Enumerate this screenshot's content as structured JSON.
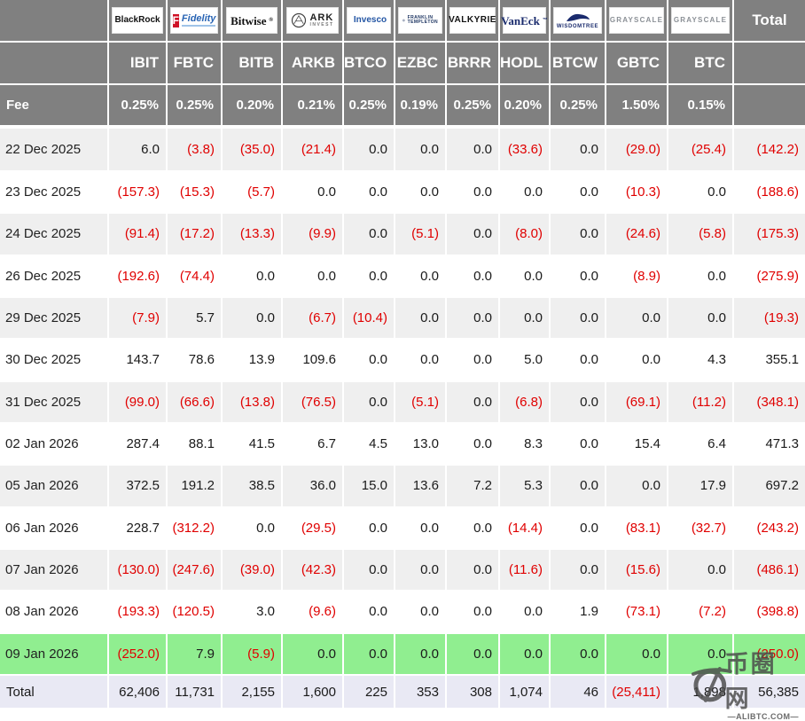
{
  "header": {
    "total_label": "Total",
    "fee_label": "Fee",
    "providers": [
      {
        "name": "BlackRock",
        "ticker": "IBIT",
        "fee": "0.25%",
        "logo": "blackrock",
        "logo_text": "BlackRock"
      },
      {
        "name": "Fidelity",
        "ticker": "FBTC",
        "fee": "0.25%",
        "logo": "fidelity",
        "logo_icon_letter": "F",
        "logo_text": "Fidelity"
      },
      {
        "name": "Bitwise",
        "ticker": "BITB",
        "fee": "0.20%",
        "logo": "bitwise",
        "logo_text": "Bitwise",
        "logo_mark": "®"
      },
      {
        "name": "ARK Invest",
        "ticker": "ARKB",
        "fee": "0.21%",
        "logo": "ark",
        "logo_text": "ARK",
        "logo_subtext": "INVEST"
      },
      {
        "name": "Invesco",
        "ticker": "BTCO",
        "fee": "0.25%",
        "logo": "invesco",
        "logo_text": "Invesco"
      },
      {
        "name": "Franklin Templeton",
        "ticker": "EZBC",
        "fee": "0.19%",
        "logo": "franklin",
        "logo_text": "FRANKLIN",
        "logo_subtext": "TEMPLETON"
      },
      {
        "name": "Valkyrie",
        "ticker": "BRRR",
        "fee": "0.25%",
        "logo": "valkyrie",
        "logo_text": "VALKYRIE"
      },
      {
        "name": "VanEck",
        "ticker": "HODL",
        "fee": "0.20%",
        "logo": "vaneck",
        "logo_text": "VanEck",
        "logo_mark": "™"
      },
      {
        "name": "WisdomTree",
        "ticker": "BTCW",
        "fee": "0.25%",
        "logo": "wisdomtree",
        "logo_text": "WISDOMTREE"
      },
      {
        "name": "Grayscale",
        "ticker": "GBTC",
        "fee": "1.50%",
        "logo": "grayscale",
        "logo_text": "GRAYSCALE"
      },
      {
        "name": "Grayscale",
        "ticker": "BTC",
        "fee": "0.15%",
        "logo": "grayscale",
        "logo_text": "GRAYSCALE"
      }
    ]
  },
  "chart_data": {
    "type": "table",
    "columns": [
      "IBIT",
      "FBTC",
      "BITB",
      "ARKB",
      "BTCO",
      "EZBC",
      "BRRR",
      "HODL",
      "BTCW",
      "GBTC",
      "BTC",
      "Total"
    ],
    "fees": [
      "0.25%",
      "0.25%",
      "0.20%",
      "0.21%",
      "0.25%",
      "0.19%",
      "0.25%",
      "0.20%",
      "0.25%",
      "1.50%",
      "0.15%"
    ],
    "rows": [
      {
        "date": "22 Dec 2025",
        "highlight": false,
        "values": [
          "6.0",
          "(3.8)",
          "(35.0)",
          "(21.4)",
          "0.0",
          "0.0",
          "0.0",
          "(33.6)",
          "0.0",
          "(29.0)",
          "(25.4)",
          "(142.2)"
        ]
      },
      {
        "date": "23 Dec 2025",
        "highlight": false,
        "values": [
          "(157.3)",
          "(15.3)",
          "(5.7)",
          "0.0",
          "0.0",
          "0.0",
          "0.0",
          "0.0",
          "0.0",
          "(10.3)",
          "0.0",
          "(188.6)"
        ]
      },
      {
        "date": "24 Dec 2025",
        "highlight": false,
        "values": [
          "(91.4)",
          "(17.2)",
          "(13.3)",
          "(9.9)",
          "0.0",
          "(5.1)",
          "0.0",
          "(8.0)",
          "0.0",
          "(24.6)",
          "(5.8)",
          "(175.3)"
        ]
      },
      {
        "date": "26 Dec 2025",
        "highlight": false,
        "values": [
          "(192.6)",
          "(74.4)",
          "0.0",
          "0.0",
          "0.0",
          "0.0",
          "0.0",
          "0.0",
          "0.0",
          "(8.9)",
          "0.0",
          "(275.9)"
        ]
      },
      {
        "date": "29 Dec 2025",
        "highlight": false,
        "values": [
          "(7.9)",
          "5.7",
          "0.0",
          "(6.7)",
          "(10.4)",
          "0.0",
          "0.0",
          "0.0",
          "0.0",
          "0.0",
          "0.0",
          "(19.3)"
        ]
      },
      {
        "date": "30 Dec 2025",
        "highlight": false,
        "values": [
          "143.7",
          "78.6",
          "13.9",
          "109.6",
          "0.0",
          "0.0",
          "0.0",
          "5.0",
          "0.0",
          "0.0",
          "4.3",
          "355.1"
        ]
      },
      {
        "date": "31 Dec 2025",
        "highlight": false,
        "values": [
          "(99.0)",
          "(66.6)",
          "(13.8)",
          "(76.5)",
          "0.0",
          "(5.1)",
          "0.0",
          "(6.8)",
          "0.0",
          "(69.1)",
          "(11.2)",
          "(348.1)"
        ]
      },
      {
        "date": "02 Jan 2026",
        "highlight": false,
        "values": [
          "287.4",
          "88.1",
          "41.5",
          "6.7",
          "4.5",
          "13.0",
          "0.0",
          "8.3",
          "0.0",
          "15.4",
          "6.4",
          "471.3"
        ]
      },
      {
        "date": "05 Jan 2026",
        "highlight": false,
        "values": [
          "372.5",
          "191.2",
          "38.5",
          "36.0",
          "15.0",
          "13.6",
          "7.2",
          "5.3",
          "0.0",
          "0.0",
          "17.9",
          "697.2"
        ]
      },
      {
        "date": "06 Jan 2026",
        "highlight": false,
        "values": [
          "228.7",
          "(312.2)",
          "0.0",
          "(29.5)",
          "0.0",
          "0.0",
          "0.0",
          "(14.4)",
          "0.0",
          "(83.1)",
          "(32.7)",
          "(243.2)"
        ]
      },
      {
        "date": "07 Jan 2026",
        "highlight": false,
        "values": [
          "(130.0)",
          "(247.6)",
          "(39.0)",
          "(42.3)",
          "0.0",
          "0.0",
          "0.0",
          "(11.6)",
          "0.0",
          "(15.6)",
          "0.0",
          "(486.1)"
        ]
      },
      {
        "date": "08 Jan 2026",
        "highlight": false,
        "values": [
          "(193.3)",
          "(120.5)",
          "3.0",
          "(9.6)",
          "0.0",
          "0.0",
          "0.0",
          "0.0",
          "1.9",
          "(73.1)",
          "(7.2)",
          "(398.8)"
        ]
      },
      {
        "date": "09 Jan 2026",
        "highlight": true,
        "values": [
          "(252.0)",
          "7.9",
          "(5.9)",
          "0.0",
          "0.0",
          "0.0",
          "0.0",
          "0.0",
          "0.0",
          "0.0",
          "0.0",
          "(250.0)"
        ]
      }
    ],
    "total_row": {
      "label": "Total",
      "values": [
        "62,406",
        "11,731",
        "2,155",
        "1,600",
        "225",
        "353",
        "308",
        "1,074",
        "46",
        "(25,411)",
        "1,898",
        "56,385"
      ]
    }
  },
  "watermark": {
    "site_name": "币圈网",
    "domain": "—ALIBTC.COM—"
  },
  "colors": {
    "header_bg": "#808080",
    "row_alt": "#efefef",
    "row_white": "#ffffff",
    "highlight_row": "#90ee90",
    "total_row_bg": "#e9e9f4",
    "negative": "#e00000",
    "positive": "#1a1a1a"
  }
}
